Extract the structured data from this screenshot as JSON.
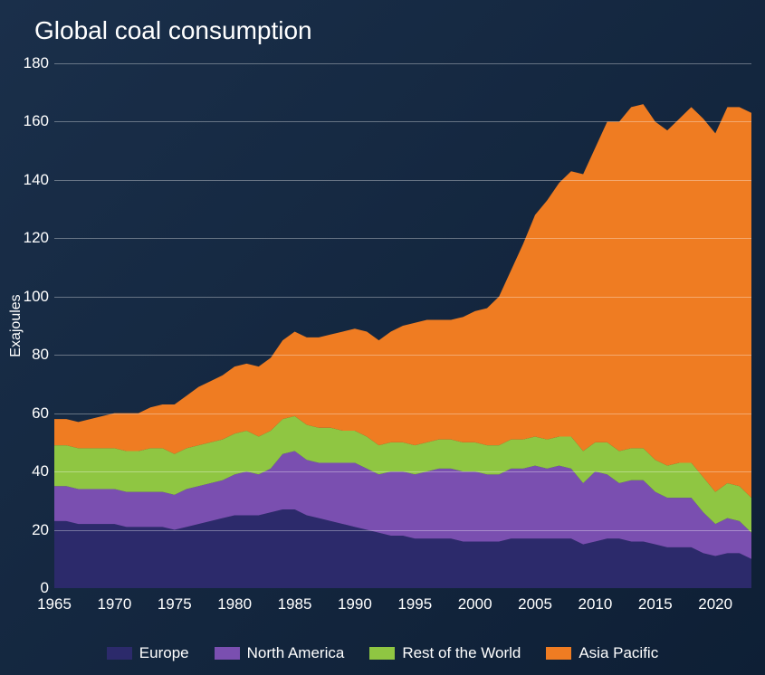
{
  "chart": {
    "type": "area-stacked",
    "title": "Global coal consumption",
    "title_fontsize": 28,
    "ylabel": "Exajoules",
    "label_fontsize": 16,
    "tick_fontsize": 17,
    "background_gradient": [
      "#1a2f4a",
      "#0e1f35"
    ],
    "grid_color": "rgba(255,255,255,0.35)",
    "text_color": "#ffffff",
    "ylim": [
      0,
      180
    ],
    "ytick_step": 20,
    "yticks": [
      0,
      20,
      40,
      60,
      80,
      100,
      120,
      140,
      160,
      180
    ],
    "xlim": [
      1965,
      2023
    ],
    "xticks": [
      1965,
      1970,
      1975,
      1980,
      1985,
      1990,
      1995,
      2000,
      2005,
      2010,
      2015,
      2020
    ],
    "years": [
      1965,
      1966,
      1967,
      1968,
      1969,
      1970,
      1971,
      1972,
      1973,
      1974,
      1975,
      1976,
      1977,
      1978,
      1979,
      1980,
      1981,
      1982,
      1983,
      1984,
      1985,
      1986,
      1987,
      1988,
      1989,
      1990,
      1991,
      1992,
      1993,
      1994,
      1995,
      1996,
      1997,
      1998,
      1999,
      2000,
      2001,
      2002,
      2003,
      2004,
      2005,
      2006,
      2007,
      2008,
      2009,
      2010,
      2011,
      2012,
      2013,
      2014,
      2015,
      2016,
      2017,
      2018,
      2019,
      2020,
      2021,
      2022,
      2023
    ],
    "series": [
      {
        "name": "Europe",
        "color": "#2c2a6b",
        "values": [
          23,
          23,
          22,
          22,
          22,
          22,
          21,
          21,
          21,
          21,
          20,
          21,
          22,
          23,
          24,
          25,
          25,
          25,
          26,
          27,
          27,
          25,
          24,
          23,
          22,
          21,
          20,
          19,
          18,
          18,
          17,
          17,
          17,
          17,
          16,
          16,
          16,
          16,
          17,
          17,
          17,
          17,
          17,
          17,
          15,
          16,
          17,
          17,
          16,
          16,
          15,
          14,
          14,
          14,
          12,
          11,
          12,
          12,
          10
        ]
      },
      {
        "name": "North America",
        "color": "#7a4fb0",
        "values": [
          12,
          12,
          12,
          12,
          12,
          12,
          12,
          12,
          12,
          12,
          12,
          13,
          13,
          13,
          13,
          14,
          15,
          14,
          15,
          19,
          20,
          19,
          19,
          20,
          21,
          22,
          21,
          20,
          22,
          22,
          22,
          23,
          24,
          24,
          24,
          24,
          23,
          23,
          24,
          24,
          25,
          24,
          25,
          24,
          21,
          24,
          22,
          19,
          21,
          21,
          18,
          17,
          17,
          17,
          14,
          11,
          12,
          11,
          9
        ]
      },
      {
        "name": "Rest of the World",
        "color": "#8fc642",
        "values": [
          14,
          14,
          14,
          14,
          14,
          14,
          14,
          14,
          15,
          15,
          14,
          14,
          14,
          14,
          14,
          14,
          14,
          13,
          13,
          12,
          12,
          12,
          12,
          12,
          11,
          11,
          11,
          10,
          10,
          10,
          10,
          10,
          10,
          10,
          10,
          10,
          10,
          10,
          10,
          10,
          10,
          10,
          10,
          11,
          11,
          10,
          11,
          11,
          11,
          11,
          11,
          11,
          12,
          12,
          12,
          11,
          12,
          12,
          12
        ]
      },
      {
        "name": "Asia Pacific",
        "color": "#ef7c22",
        "values": [
          9,
          9,
          9,
          10,
          11,
          12,
          13,
          13,
          14,
          15,
          17,
          18,
          20,
          21,
          22,
          23,
          23,
          24,
          25,
          27,
          29,
          30,
          31,
          32,
          34,
          35,
          36,
          36,
          38,
          40,
          42,
          42,
          41,
          41,
          43,
          45,
          47,
          51,
          58,
          67,
          76,
          82,
          87,
          91,
          95,
          101,
          110,
          113,
          117,
          118,
          116,
          115,
          118,
          122,
          123,
          123,
          129,
          130,
          132
        ]
      }
    ],
    "legend": {
      "items": [
        "Europe",
        "North America",
        "Rest of the World",
        "Asia Pacific"
      ],
      "colors": [
        "#2c2a6b",
        "#7a4fb0",
        "#8fc642",
        "#ef7c22"
      ],
      "fontsize": 17,
      "swatch_width": 28,
      "swatch_height": 14
    }
  }
}
